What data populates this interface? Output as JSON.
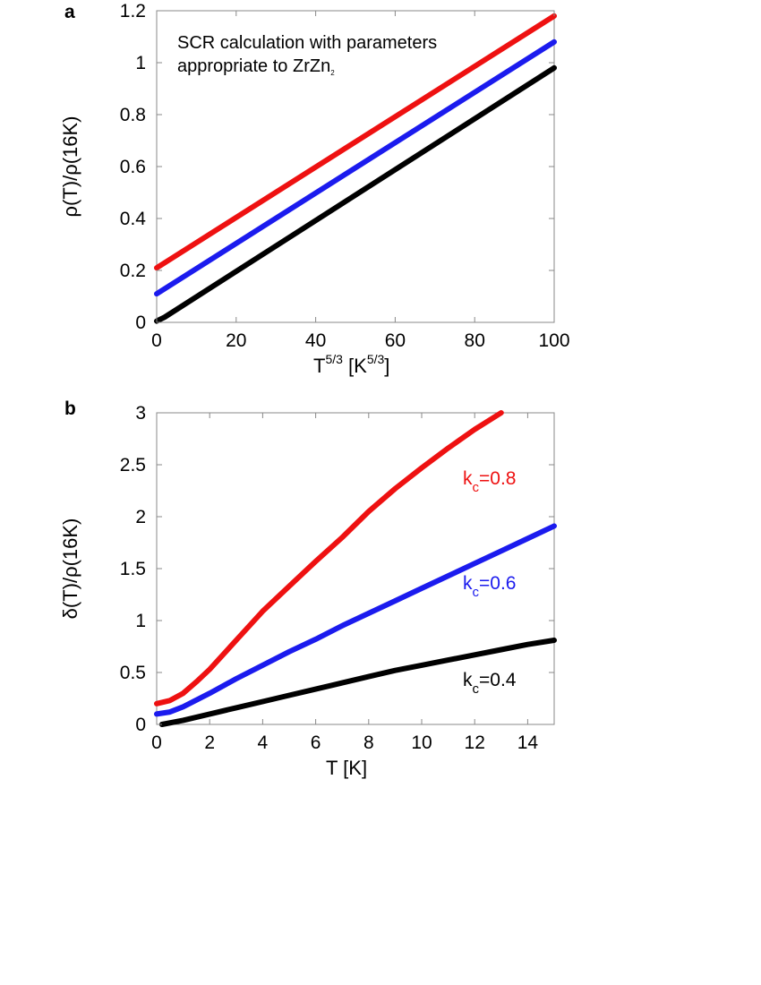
{
  "colors": {
    "red": "#ee1111",
    "blue": "#1b1bee",
    "black": "#000000",
    "axis": "#888888"
  },
  "chart_data": [
    {
      "panel": "a",
      "type": "line",
      "xlabel": {
        "main": "T",
        "sup": "5/3",
        "unit_open": " [K",
        "unit_sup": "5/3",
        "unit_close": "]"
      },
      "ylabel": "ρ(T)/ρ(16K)",
      "xlim": [
        0,
        100
      ],
      "ylim": [
        0,
        1.2
      ],
      "xticks": [
        "0",
        "20",
        "40",
        "60",
        "80",
        "100"
      ],
      "yticks": [
        "0",
        "0.2",
        "0.4",
        "0.6",
        "0.8",
        "1",
        "1.2"
      ],
      "annotation": {
        "line1": "SCR calculation with parameters",
        "line2": "appropriate to ZrZn",
        "line2_sub": "2"
      },
      "series": [
        {
          "name": "red",
          "color": "red",
          "points": [
            [
              0,
              0.21
            ],
            [
              100,
              1.18
            ]
          ]
        },
        {
          "name": "blue",
          "color": "blue",
          "points": [
            [
              0,
              0.11
            ],
            [
              100,
              1.08
            ]
          ]
        },
        {
          "name": "black",
          "color": "black",
          "points": [
            [
              0,
              0.005
            ],
            [
              2,
              0.02
            ],
            [
              100,
              0.98
            ]
          ]
        }
      ]
    },
    {
      "panel": "b",
      "type": "line",
      "xlabel": {
        "main": "T [K]"
      },
      "ylabel": "δ(T)/ρ(16K)",
      "xlim": [
        0,
        15
      ],
      "ylim": [
        0,
        3
      ],
      "xticks": [
        "0",
        "2",
        "4",
        "6",
        "8",
        "10",
        "12",
        "14"
      ],
      "yticks": [
        "0",
        "0.5",
        "1",
        "1.5",
        "2",
        "2.5",
        "3"
      ],
      "series": [
        {
          "name": "k_c=0.8",
          "label_main": "k",
          "label_sub": "c",
          "label_value": "=0.8",
          "color": "red",
          "points": [
            [
              0,
              0.2
            ],
            [
              0.5,
              0.23
            ],
            [
              1,
              0.3
            ],
            [
              1.5,
              0.41
            ],
            [
              2,
              0.53
            ],
            [
              3,
              0.81
            ],
            [
              4,
              1.09
            ],
            [
              5,
              1.33
            ],
            [
              6,
              1.57
            ],
            [
              7,
              1.8
            ],
            [
              8,
              2.05
            ],
            [
              9,
              2.27
            ],
            [
              10,
              2.47
            ],
            [
              11,
              2.66
            ],
            [
              12,
              2.84
            ],
            [
              13,
              3.0
            ]
          ]
        },
        {
          "name": "k_c=0.6",
          "label_main": "k",
          "label_sub": "c",
          "label_value": "=0.6",
          "color": "blue",
          "points": [
            [
              0,
              0.1
            ],
            [
              0.5,
              0.12
            ],
            [
              1,
              0.17
            ],
            [
              2,
              0.3
            ],
            [
              3,
              0.44
            ],
            [
              4,
              0.57
            ],
            [
              5,
              0.7
            ],
            [
              6,
              0.82
            ],
            [
              7,
              0.95
            ],
            [
              8,
              1.07
            ],
            [
              9,
              1.19
            ],
            [
              10,
              1.31
            ],
            [
              11,
              1.43
            ],
            [
              12,
              1.55
            ],
            [
              13,
              1.67
            ],
            [
              14,
              1.79
            ],
            [
              15,
              1.91
            ]
          ]
        },
        {
          "name": "k_c=0.4",
          "label_main": "k",
          "label_sub": "c",
          "label_value": "=0.4",
          "color": "black",
          "points": [
            [
              0.2,
              0.0
            ],
            [
              1,
              0.04
            ],
            [
              2,
              0.1
            ],
            [
              3,
              0.16
            ],
            [
              4,
              0.22
            ],
            [
              5,
              0.28
            ],
            [
              6,
              0.34
            ],
            [
              7,
              0.4
            ],
            [
              8,
              0.46
            ],
            [
              9,
              0.52
            ],
            [
              10,
              0.57
            ],
            [
              11,
              0.62
            ],
            [
              12,
              0.67
            ],
            [
              13,
              0.72
            ],
            [
              14,
              0.77
            ],
            [
              15,
              0.81
            ]
          ]
        }
      ]
    }
  ]
}
